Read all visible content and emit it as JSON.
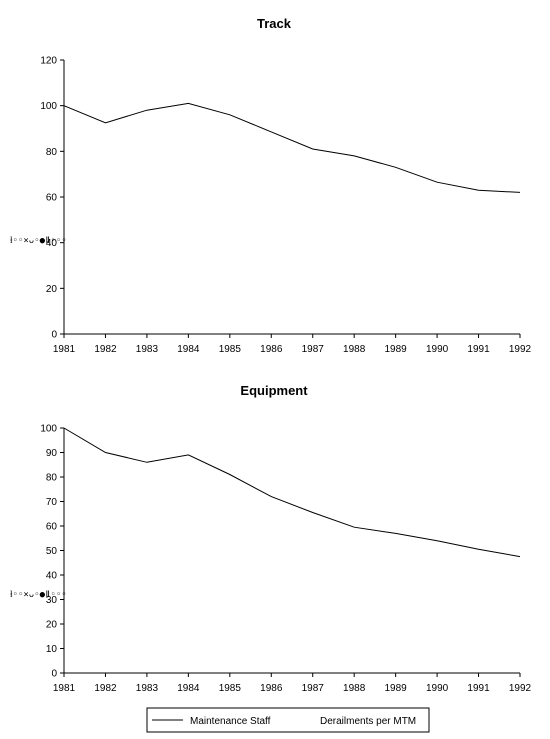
{
  "chart_data": [
    {
      "type": "line",
      "title": "Track",
      "ylabel_garbled": "ⱡ◦◦×ᴗ◦●ǁ◦◦◦",
      "x": [
        "1981",
        "1982",
        "1983",
        "1984",
        "1985",
        "1986",
        "1987",
        "1988",
        "1989",
        "1990",
        "1991",
        "1992"
      ],
      "ylim": [
        0,
        120
      ],
      "yticks": [
        0,
        20,
        40,
        60,
        80,
        100,
        120
      ],
      "series": [
        {
          "name": "Maintenance Staff",
          "values": [
            100,
            92.5,
            98,
            101,
            96,
            88.5,
            81,
            78,
            73,
            66.5,
            63,
            62
          ]
        }
      ]
    },
    {
      "type": "line",
      "title": "Equipment",
      "ylabel_garbled": "ⱡ◦◦×ᴗ◦●ǁ◦◦◦",
      "x": [
        "1981",
        "1982",
        "1983",
        "1984",
        "1985",
        "1986",
        "1987",
        "1988",
        "1989",
        "1990",
        "1991",
        "1992"
      ],
      "ylim": [
        0,
        100
      ],
      "yticks": [
        0,
        10,
        20,
        30,
        40,
        50,
        60,
        70,
        80,
        90,
        100
      ],
      "series": [
        {
          "name": "Maintenance Staff",
          "values": [
            100,
            90,
            86,
            89,
            81,
            72,
            65.5,
            59.5,
            57,
            54,
            50.5,
            47.5
          ]
        }
      ]
    }
  ],
  "legend": {
    "items": [
      "Maintenance Staff",
      "Derailments per MTM"
    ],
    "colors": [
      "#000000",
      "#000000"
    ]
  }
}
